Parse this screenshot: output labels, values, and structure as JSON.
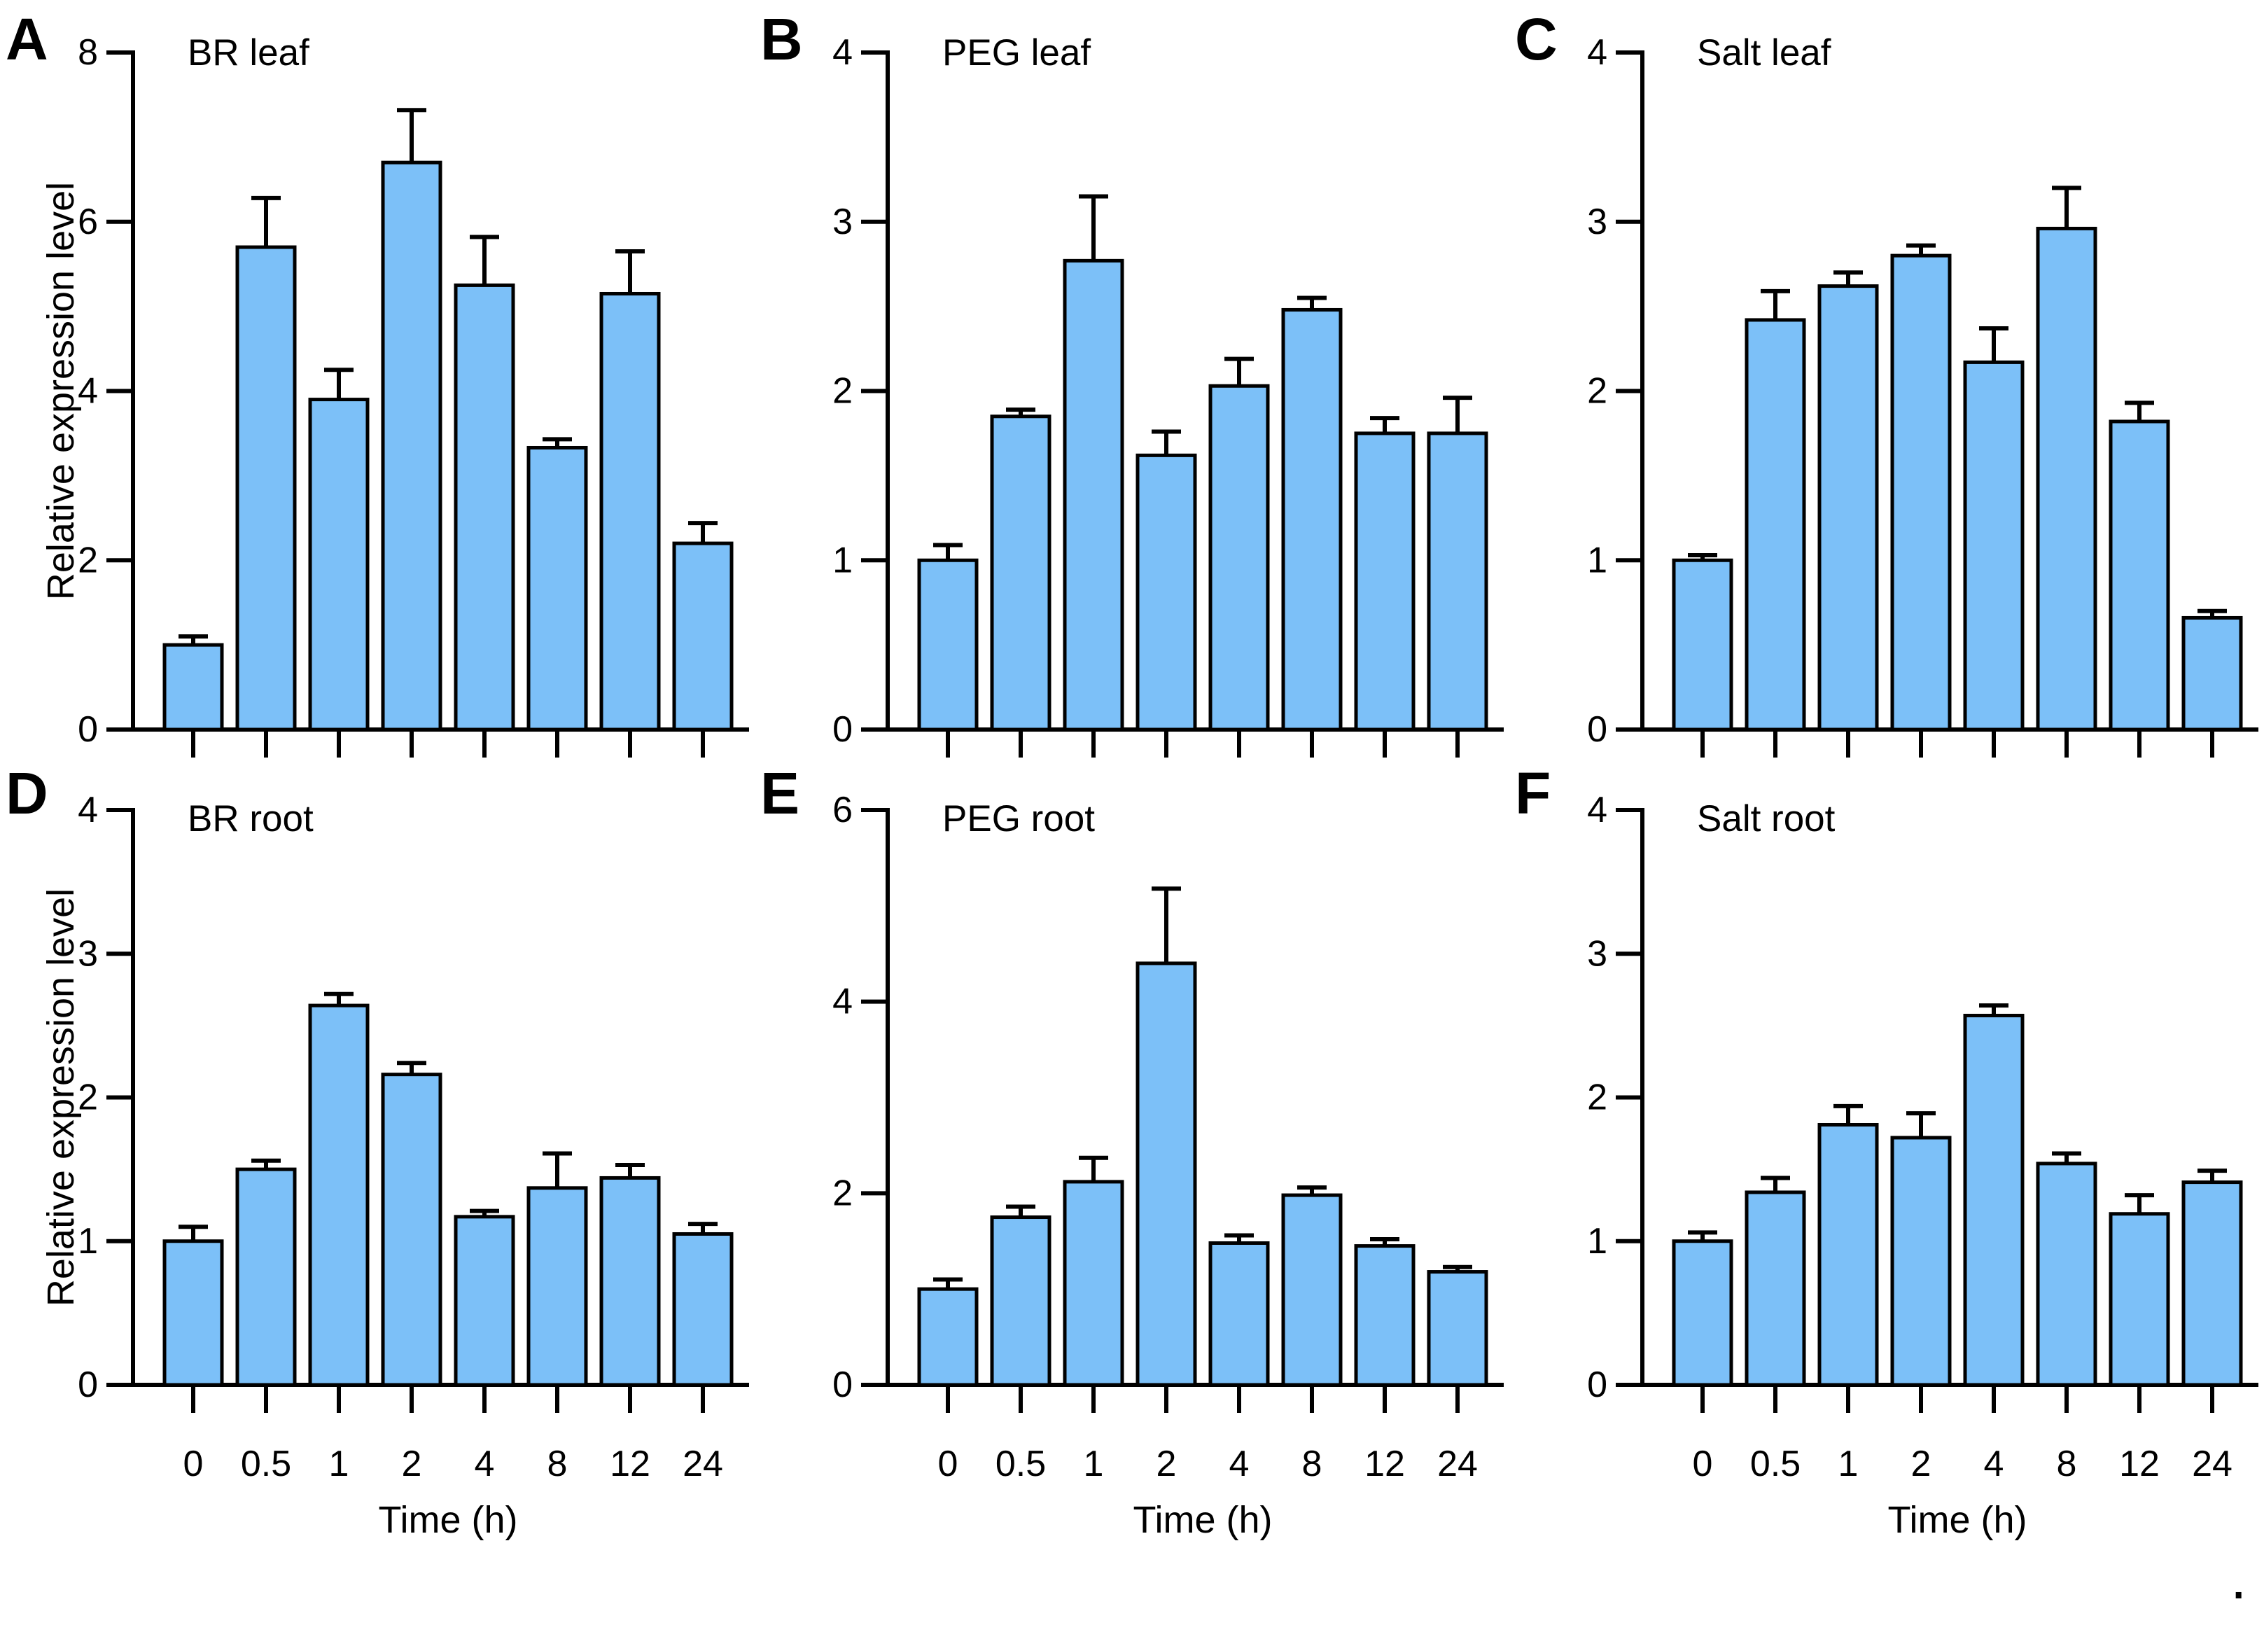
{
  "figure": {
    "background": "#FFFFFF",
    "bar_fill": "#7CC0F8",
    "bar_stroke": "#000000",
    "axis_color": "#000000",
    "trailing_period": "."
  },
  "chart_data": [
    {
      "type": "bar",
      "panel_letter": "A",
      "title": "BR leaf",
      "row": "top",
      "categories": [
        "0",
        "0.5",
        "1",
        "2",
        "4",
        "8",
        "12",
        "24"
      ],
      "values": [
        1.0,
        5.7,
        3.9,
        6.7,
        5.25,
        3.33,
        5.15,
        2.2
      ],
      "errors": [
        0.1,
        0.58,
        0.35,
        0.62,
        0.57,
        0.1,
        0.5,
        0.24
      ],
      "xlabel": "Time (h)",
      "ylabel": "Relative expression level",
      "ylim": [
        0,
        8
      ],
      "yticks": [
        0,
        2,
        4,
        6,
        8
      ],
      "grid": false,
      "show_x_tick_labels": false,
      "show_xlabel": false,
      "show_ylabel": true
    },
    {
      "type": "bar",
      "panel_letter": "B",
      "title": "PEG leaf",
      "row": "top",
      "categories": [
        "0",
        "0.5",
        "1",
        "2",
        "4",
        "8",
        "12",
        "24"
      ],
      "values": [
        1.0,
        1.85,
        2.77,
        1.62,
        2.03,
        2.48,
        1.75,
        1.75
      ],
      "errors": [
        0.09,
        0.04,
        0.38,
        0.14,
        0.16,
        0.07,
        0.09,
        0.21
      ],
      "xlabel": "Time (h)",
      "ylabel": "Relative expression level",
      "ylim": [
        0,
        4
      ],
      "yticks": [
        0,
        1,
        2,
        3,
        4
      ],
      "grid": false,
      "show_x_tick_labels": false,
      "show_xlabel": false,
      "show_ylabel": false
    },
    {
      "type": "bar",
      "panel_letter": "C",
      "title": "Salt leaf",
      "row": "top",
      "categories": [
        "0",
        "0.5",
        "1",
        "2",
        "4",
        "8",
        "12",
        "24"
      ],
      "values": [
        1.0,
        2.42,
        2.62,
        2.8,
        2.17,
        2.96,
        1.82,
        0.66
      ],
      "errors": [
        0.03,
        0.17,
        0.08,
        0.06,
        0.2,
        0.24,
        0.11,
        0.04
      ],
      "xlabel": "Time (h)",
      "ylabel": "Relative expression level",
      "ylim": [
        0,
        4
      ],
      "yticks": [
        0,
        1,
        2,
        3,
        4
      ],
      "grid": false,
      "show_x_tick_labels": false,
      "show_xlabel": false,
      "show_ylabel": false
    },
    {
      "type": "bar",
      "panel_letter": "D",
      "title": "BR root",
      "row": "bottom",
      "categories": [
        "0",
        "0.5",
        "1",
        "2",
        "4",
        "8",
        "12",
        "24"
      ],
      "values": [
        1.0,
        1.5,
        2.64,
        2.16,
        1.17,
        1.37,
        1.44,
        1.05
      ],
      "errors": [
        0.1,
        0.06,
        0.08,
        0.08,
        0.04,
        0.24,
        0.09,
        0.07
      ],
      "xlabel": "Time (h)",
      "ylabel": "Relative expression level",
      "ylim": [
        0,
        4
      ],
      "yticks": [
        0,
        1,
        2,
        3,
        4
      ],
      "grid": false,
      "show_x_tick_labels": true,
      "show_xlabel": true,
      "show_ylabel": true
    },
    {
      "type": "bar",
      "panel_letter": "E",
      "title": "PEG root",
      "row": "bottom",
      "categories": [
        "0",
        "0.5",
        "1",
        "2",
        "4",
        "8",
        "12",
        "24"
      ],
      "values": [
        1.0,
        1.75,
        2.12,
        4.4,
        1.48,
        1.98,
        1.45,
        1.18
      ],
      "errors": [
        0.1,
        0.11,
        0.25,
        0.78,
        0.08,
        0.08,
        0.07,
        0.05
      ],
      "xlabel": "Time (h)",
      "ylabel": "Relative expression level",
      "ylim": [
        0,
        6
      ],
      "yticks": [
        0,
        2,
        4,
        6
      ],
      "grid": false,
      "show_x_tick_labels": true,
      "show_xlabel": true,
      "show_ylabel": false
    },
    {
      "type": "bar",
      "panel_letter": "F",
      "title": "Salt root",
      "row": "bottom",
      "categories": [
        "0",
        "0.5",
        "1",
        "2",
        "4",
        "8",
        "12",
        "24"
      ],
      "values": [
        1.0,
        1.34,
        1.81,
        1.72,
        2.57,
        1.54,
        1.19,
        1.41
      ],
      "errors": [
        0.06,
        0.1,
        0.13,
        0.17,
        0.07,
        0.07,
        0.13,
        0.08
      ],
      "xlabel": "Time (h)",
      "ylabel": "Relative expression level",
      "ylim": [
        0,
        4
      ],
      "yticks": [
        0,
        1,
        2,
        3,
        4
      ],
      "grid": false,
      "show_x_tick_labels": true,
      "show_xlabel": true,
      "show_ylabel": false
    }
  ]
}
